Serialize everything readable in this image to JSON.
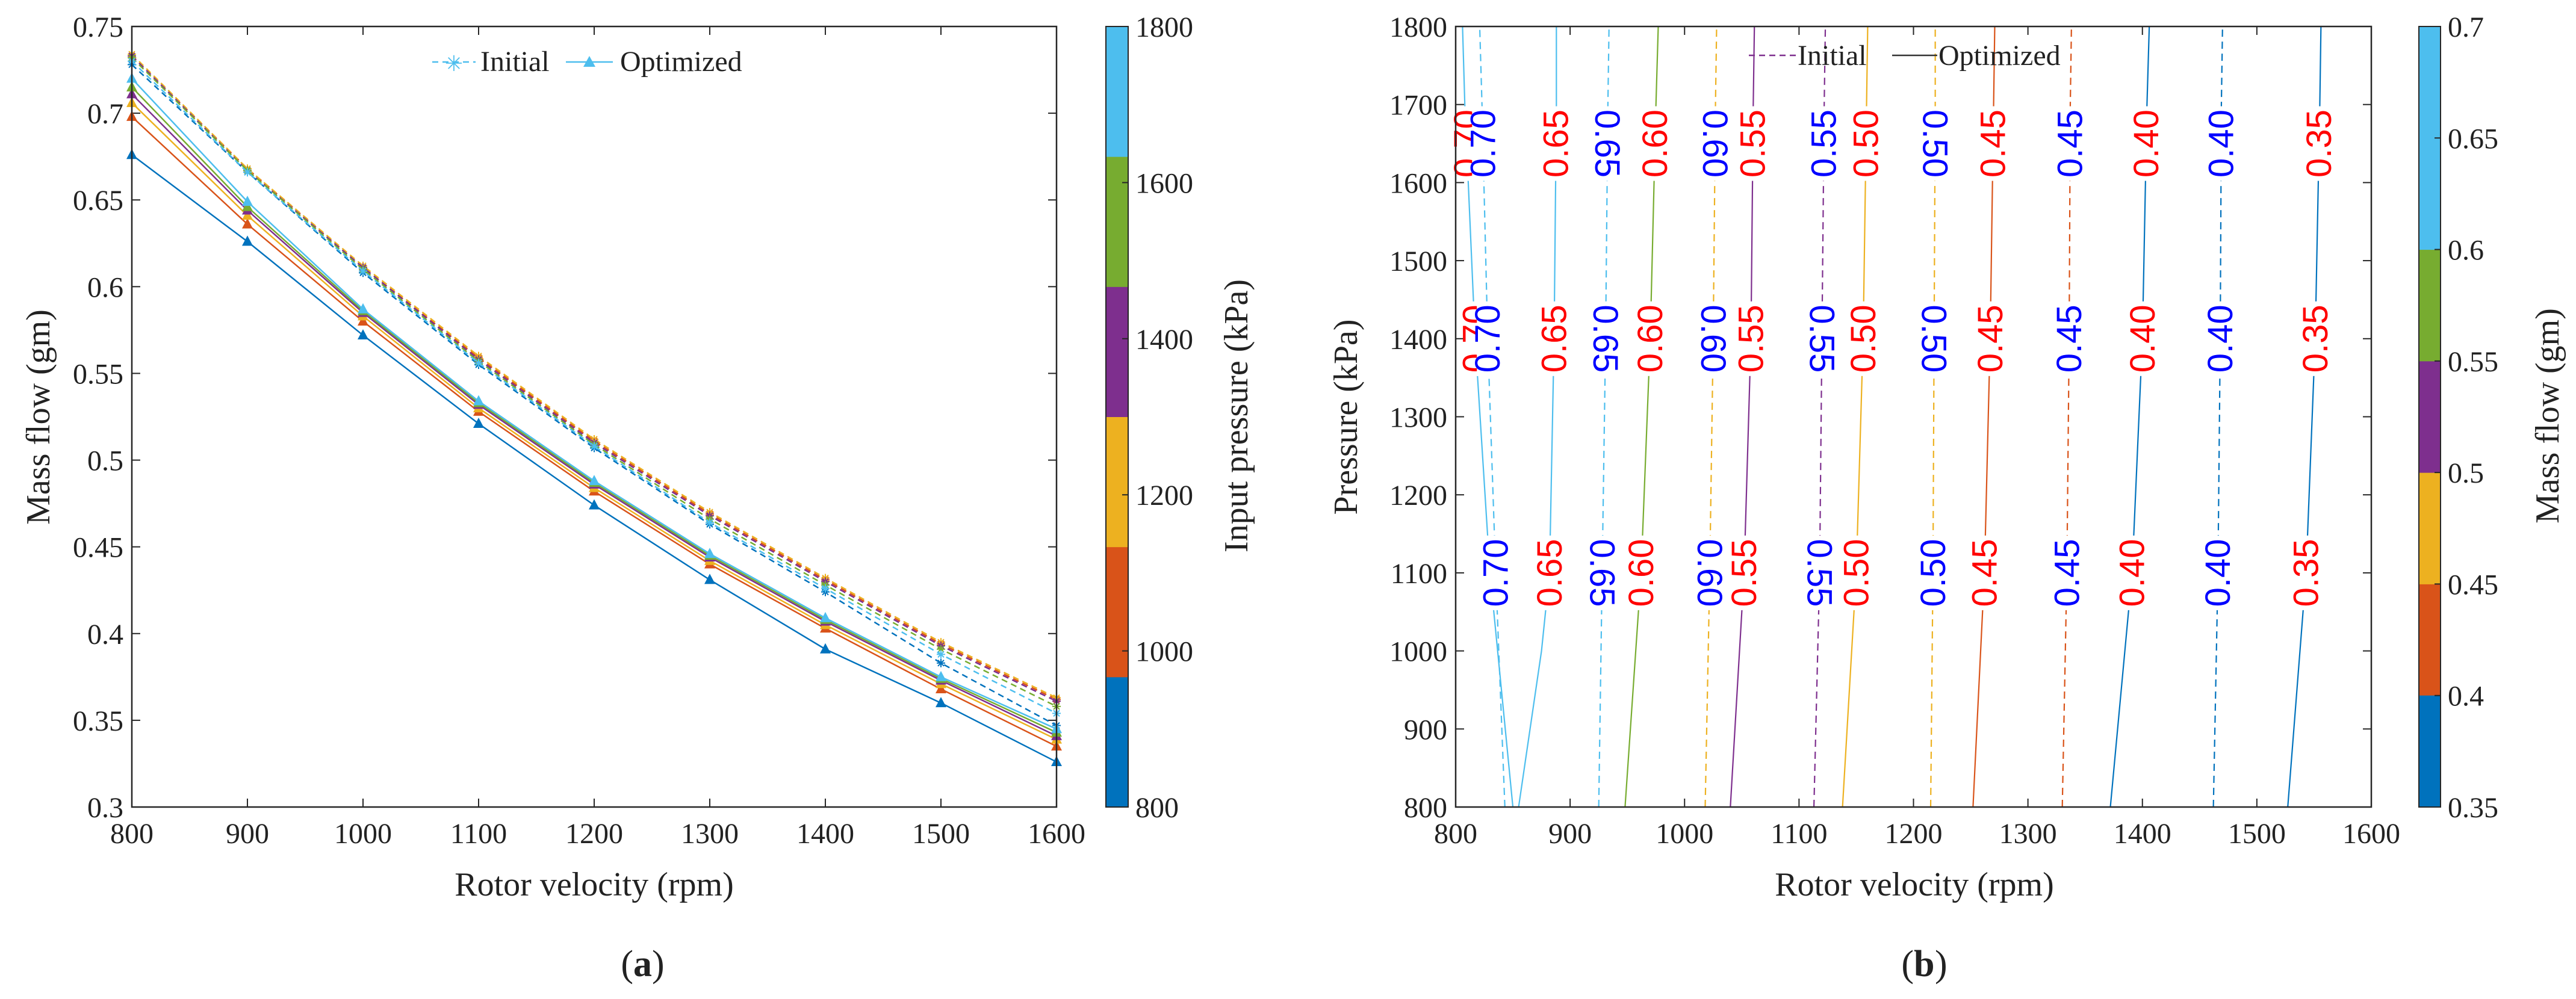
{
  "chart_data": [
    {
      "type": "line",
      "panel_label": "(a)",
      "panel_letter": "a",
      "xlabel": "Rotor velocity (rpm)",
      "ylabel": "Mass flow (gm)",
      "xlim": [
        800,
        1600
      ],
      "ylim": [
        0.3,
        0.75
      ],
      "xticks": [
        "800",
        "900",
        "1000",
        "1100",
        "1200",
        "1300",
        "1400",
        "1500",
        "1600"
      ],
      "yticks": [
        "0.3",
        "0.35",
        "0.4",
        "0.45",
        "0.5",
        "0.55",
        "0.6",
        "0.65",
        "0.7",
        "0.75"
      ],
      "x": [
        800,
        900,
        1000,
        1100,
        1200,
        1300,
        1400,
        1500,
        1600
      ],
      "legend": [
        {
          "name": "Initial",
          "style": "dashed",
          "marker": "star"
        },
        {
          "name": "Optimized",
          "style": "solid",
          "marker": "triangle"
        }
      ],
      "colorbar": {
        "label": "Input pressure (kPa)",
        "ticks": [
          "800",
          "1000",
          "1200",
          "1400",
          "1600",
          "1800"
        ],
        "colors": [
          "#0072bd",
          "#d95319",
          "#edb120",
          "#7e2f8e",
          "#77ac30",
          "#4dbeee"
        ]
      },
      "series": [
        {
          "name": "Initial 800 kPa",
          "kind": "initial",
          "pressure": 800,
          "color": "#0072bd",
          "values": [
            0.728,
            0.666,
            0.608,
            0.555,
            0.507,
            0.463,
            0.424,
            0.383,
            0.347
          ]
        },
        {
          "name": "Initial 1000 kPa",
          "kind": "initial",
          "pressure": 1000,
          "color": "#d95319",
          "values": [
            0.733,
            0.668,
            0.611,
            0.559,
            0.511,
            0.469,
            0.431,
            0.394,
            0.362
          ]
        },
        {
          "name": "Initial 1200 kPa",
          "kind": "initial",
          "pressure": 1200,
          "color": "#edb120",
          "values": [
            0.734,
            0.668,
            0.612,
            0.56,
            0.512,
            0.47,
            0.432,
            0.395,
            0.363
          ]
        },
        {
          "name": "Initial 1400 kPa",
          "kind": "initial",
          "pressure": 1400,
          "color": "#7e2f8e",
          "values": [
            0.733,
            0.667,
            0.611,
            0.558,
            0.51,
            0.468,
            0.43,
            0.393,
            0.361
          ]
        },
        {
          "name": "Initial 1600 kPa",
          "kind": "initial",
          "pressure": 1600,
          "color": "#77ac30",
          "values": [
            0.732,
            0.667,
            0.61,
            0.557,
            0.509,
            0.466,
            0.428,
            0.391,
            0.358
          ]
        },
        {
          "name": "Initial 1800 kPa",
          "kind": "initial",
          "pressure": 1800,
          "color": "#4dbeee",
          "values": [
            0.73,
            0.666,
            0.609,
            0.556,
            0.508,
            0.464,
            0.426,
            0.388,
            0.354
          ]
        },
        {
          "name": "Optimized 800 kPa",
          "kind": "optimized",
          "pressure": 800,
          "color": "#0072bd",
          "values": [
            0.676,
            0.626,
            0.572,
            0.521,
            0.474,
            0.431,
            0.391,
            0.36,
            0.326
          ]
        },
        {
          "name": "Optimized 1000 kPa",
          "kind": "optimized",
          "pressure": 1000,
          "color": "#d95319",
          "values": [
            0.698,
            0.636,
            0.58,
            0.528,
            0.482,
            0.44,
            0.403,
            0.368,
            0.335
          ]
        },
        {
          "name": "Optimized 1200 kPa",
          "kind": "optimized",
          "pressure": 1200,
          "color": "#edb120",
          "values": [
            0.706,
            0.641,
            0.583,
            0.53,
            0.484,
            0.442,
            0.405,
            0.371,
            0.339
          ]
        },
        {
          "name": "Optimized 1400 kPa",
          "kind": "optimized",
          "pressure": 1400,
          "color": "#7e2f8e",
          "values": [
            0.711,
            0.644,
            0.585,
            0.532,
            0.486,
            0.444,
            0.407,
            0.373,
            0.341
          ]
        },
        {
          "name": "Optimized 1600 kPa",
          "kind": "optimized",
          "pressure": 1600,
          "color": "#77ac30",
          "values": [
            0.715,
            0.646,
            0.586,
            0.533,
            0.487,
            0.445,
            0.408,
            0.374,
            0.343
          ]
        },
        {
          "name": "Optimized 1800 kPa",
          "kind": "optimized",
          "pressure": 1800,
          "color": "#4dbeee",
          "values": [
            0.72,
            0.649,
            0.587,
            0.534,
            0.488,
            0.446,
            0.409,
            0.375,
            0.345
          ]
        }
      ]
    },
    {
      "type": "contour",
      "panel_label": "(b)",
      "panel_letter": "b",
      "xlabel": "Rotor velocity (rpm)",
      "ylabel": "Pressure (kPa)",
      "xlim": [
        800,
        1600
      ],
      "ylim": [
        800,
        1800
      ],
      "xticks": [
        "800",
        "900",
        "1000",
        "1100",
        "1200",
        "1300",
        "1400",
        "1500",
        "1600"
      ],
      "yticks": [
        "800",
        "900",
        "1000",
        "1100",
        "1200",
        "1300",
        "1400",
        "1500",
        "1600",
        "1700",
        "1800"
      ],
      "legend": [
        {
          "name": "Initial",
          "style": "dashed"
        },
        {
          "name": "Optimized",
          "style": "solid"
        }
      ],
      "colorbar": {
        "label": "Mass flow (gm)",
        "ticks": [
          "0.35",
          "0.4",
          "0.45",
          "0.5",
          "0.55",
          "0.6",
          "0.65",
          "0.7"
        ],
        "colors": [
          "#0072bd",
          "#d95319",
          "#edb120",
          "#7e2f8e",
          "#77ac30",
          "#4dbeee"
        ]
      },
      "contours": [
        {
          "level": 0.7,
          "kind": "optimized",
          "color": "#4dbeee",
          "pressures": [
            800,
            1100,
            1400,
            1700,
            1800
          ],
          "velocities": [
            850,
            830,
            817,
            808,
            806
          ],
          "labels": [
            {
              "text": "0.70",
              "color": "#ff0000",
              "rotated": false,
              "pressure": 1400
            },
            {
              "text": "0.70",
              "color": "#ff0000",
              "rotated": false,
              "pressure": 1650
            }
          ]
        },
        {
          "level": 0.7,
          "kind": "initial",
          "color": "#4dbeee",
          "pressures": [
            800,
            1100,
            1400,
            1700,
            1800
          ],
          "velocities": [
            843,
            835,
            828,
            823,
            821
          ],
          "labels": [
            {
              "text": "0.70",
              "color": "#0000ff",
              "rotated": false,
              "pressure": 1100
            },
            {
              "text": "0.70",
              "color": "#0000ff",
              "rotated": false,
              "pressure": 1400
            },
            {
              "text": "0.70",
              "color": "#0000ff",
              "rotated": false,
              "pressure": 1650
            }
          ]
        },
        {
          "level": 0.65,
          "kind": "optimized",
          "color": "#4dbeee",
          "pressures": [
            800,
            1000,
            1100,
            1400,
            1700,
            1800
          ],
          "velocities": [
            855,
            875,
            882,
            886,
            888,
            888
          ],
          "labels": [
            {
              "text": "0.65",
              "color": "#ff0000",
              "rotated": false,
              "pressure": 1100
            },
            {
              "text": "0.65",
              "color": "#ff0000",
              "rotated": false,
              "pressure": 1400
            },
            {
              "text": "0.65",
              "color": "#ff0000",
              "rotated": false,
              "pressure": 1650
            }
          ]
        },
        {
          "level": 0.65,
          "kind": "initial",
          "color": "#4dbeee",
          "pressures": [
            800,
            1100,
            1400,
            1700,
            1800
          ],
          "velocities": [
            925,
            928,
            931,
            933,
            934
          ],
          "labels": [
            {
              "text": "0.65",
              "color": "#0000ff",
              "rotated": true,
              "pressure": 1100
            },
            {
              "text": "0.65",
              "color": "#0000ff",
              "rotated": true,
              "pressure": 1400
            },
            {
              "text": "0.65",
              "color": "#0000ff",
              "rotated": true,
              "pressure": 1650
            }
          ]
        },
        {
          "level": 0.6,
          "kind": "optimized",
          "color": "#77ac30",
          "pressures": [
            800,
            1100,
            1400,
            1700,
            1800
          ],
          "velocities": [
            948,
            962,
            970,
            975,
            977
          ],
          "labels": [
            {
              "text": "0.60",
              "color": "#ff0000",
              "rotated": false,
              "pressure": 1100
            },
            {
              "text": "0.60",
              "color": "#ff0000",
              "rotated": false,
              "pressure": 1400
            },
            {
              "text": "0.60",
              "color": "#ff0000",
              "rotated": false,
              "pressure": 1650
            }
          ]
        },
        {
          "level": 0.6,
          "kind": "initial",
          "color": "#edb120",
          "pressures": [
            800,
            1100,
            1400,
            1700,
            1800
          ],
          "velocities": [
            1018,
            1022,
            1025,
            1027,
            1028
          ],
          "labels": [
            {
              "text": "0.60",
              "color": "#0000ff",
              "rotated": true,
              "pressure": 1100
            },
            {
              "text": "0.60",
              "color": "#0000ff",
              "rotated": true,
              "pressure": 1400
            },
            {
              "text": "0.60",
              "color": "#0000ff",
              "rotated": true,
              "pressure": 1650
            }
          ]
        },
        {
          "level": 0.55,
          "kind": "optimized",
          "color": "#7e2f8e",
          "pressures": [
            800,
            1100,
            1400,
            1700,
            1800
          ],
          "velocities": [
            1040,
            1052,
            1058,
            1060,
            1061
          ],
          "labels": [
            {
              "text": "0.55",
              "color": "#ff0000",
              "rotated": false,
              "pressure": 1100
            },
            {
              "text": "0.55",
              "color": "#ff0000",
              "rotated": false,
              "pressure": 1400
            },
            {
              "text": "0.55",
              "color": "#ff0000",
              "rotated": false,
              "pressure": 1650
            }
          ]
        },
        {
          "level": 0.55,
          "kind": "initial",
          "color": "#7e2f8e",
          "pressures": [
            800,
            1100,
            1400,
            1700,
            1800
          ],
          "velocities": [
            1113,
            1118,
            1120,
            1122,
            1123
          ],
          "labels": [
            {
              "text": "0.55",
              "color": "#0000ff",
              "rotated": true,
              "pressure": 1100
            },
            {
              "text": "0.55",
              "color": "#0000ff",
              "rotated": true,
              "pressure": 1400
            },
            {
              "text": "0.55",
              "color": "#0000ff",
              "rotated": false,
              "pressure": 1650
            }
          ]
        },
        {
          "level": 0.5,
          "kind": "optimized",
          "color": "#edb120",
          "pressures": [
            800,
            1100,
            1400,
            1700,
            1800
          ],
          "velocities": [
            1138,
            1150,
            1156,
            1159,
            1160
          ],
          "labels": [
            {
              "text": "0.50",
              "color": "#ff0000",
              "rotated": false,
              "pressure": 1100
            },
            {
              "text": "0.50",
              "color": "#ff0000",
              "rotated": false,
              "pressure": 1400
            },
            {
              "text": "0.50",
              "color": "#ff0000",
              "rotated": false,
              "pressure": 1650
            }
          ]
        },
        {
          "level": 0.5,
          "kind": "initial",
          "color": "#edb120",
          "pressures": [
            800,
            1100,
            1400,
            1700,
            1800
          ],
          "velocities": [
            1215,
            1217,
            1218,
            1219,
            1219
          ],
          "labels": [
            {
              "text": "0.50",
              "color": "#0000ff",
              "rotated": false,
              "pressure": 1100
            },
            {
              "text": "0.50",
              "color": "#0000ff",
              "rotated": true,
              "pressure": 1400
            },
            {
              "text": "0.50",
              "color": "#0000ff",
              "rotated": true,
              "pressure": 1650
            }
          ]
        },
        {
          "level": 0.45,
          "kind": "optimized",
          "color": "#d95319",
          "pressures": [
            800,
            1100,
            1400,
            1700,
            1800
          ],
          "velocities": [
            1252,
            1262,
            1267,
            1270,
            1271
          ],
          "labels": [
            {
              "text": "0.45",
              "color": "#ff0000",
              "rotated": false,
              "pressure": 1100
            },
            {
              "text": "0.45",
              "color": "#ff0000",
              "rotated": false,
              "pressure": 1400
            },
            {
              "text": "0.45",
              "color": "#ff0000",
              "rotated": false,
              "pressure": 1650
            }
          ]
        },
        {
          "level": 0.45,
          "kind": "initial",
          "color": "#d95319",
          "pressures": [
            800,
            1100,
            1400,
            1700,
            1800
          ],
          "velocities": [
            1330,
            1334,
            1336,
            1337,
            1338
          ],
          "labels": [
            {
              "text": "0.45",
              "color": "#0000ff",
              "rotated": false,
              "pressure": 1100
            },
            {
              "text": "0.45",
              "color": "#0000ff",
              "rotated": false,
              "pressure": 1400
            },
            {
              "text": "0.45",
              "color": "#0000ff",
              "rotated": false,
              "pressure": 1650
            }
          ]
        },
        {
          "level": 0.4,
          "kind": "optimized",
          "color": "#0072bd",
          "pressures": [
            800,
            1100,
            1400,
            1700,
            1800
          ],
          "velocities": [
            1372,
            1391,
            1400,
            1404,
            1406
          ],
          "labels": [
            {
              "text": "0.40",
              "color": "#ff0000",
              "rotated": false,
              "pressure": 1100
            },
            {
              "text": "0.40",
              "color": "#ff0000",
              "rotated": false,
              "pressure": 1400
            },
            {
              "text": "0.40",
              "color": "#ff0000",
              "rotated": false,
              "pressure": 1650
            }
          ]
        },
        {
          "level": 0.4,
          "kind": "initial",
          "color": "#0072bd",
          "pressures": [
            800,
            1100,
            1400,
            1700,
            1800
          ],
          "velocities": [
            1462,
            1466,
            1468,
            1469,
            1470
          ],
          "labels": [
            {
              "text": "0.40",
              "color": "#0000ff",
              "rotated": false,
              "pressure": 1100
            },
            {
              "text": "0.40",
              "color": "#0000ff",
              "rotated": false,
              "pressure": 1400
            },
            {
              "text": "0.40",
              "color": "#0000ff",
              "rotated": false,
              "pressure": 1650
            }
          ]
        },
        {
          "level": 0.35,
          "kind": "optimized",
          "color": "#0072bd",
          "pressures": [
            800,
            1100,
            1400,
            1700,
            1800
          ],
          "velocities": [
            1527,
            1543,
            1551,
            1555,
            1556
          ],
          "labels": [
            {
              "text": "0.35",
              "color": "#ff0000",
              "rotated": false,
              "pressure": 1100
            },
            {
              "text": "0.35",
              "color": "#ff0000",
              "rotated": false,
              "pressure": 1400
            },
            {
              "text": "0.35",
              "color": "#ff0000",
              "rotated": false,
              "pressure": 1650
            }
          ]
        }
      ]
    }
  ]
}
